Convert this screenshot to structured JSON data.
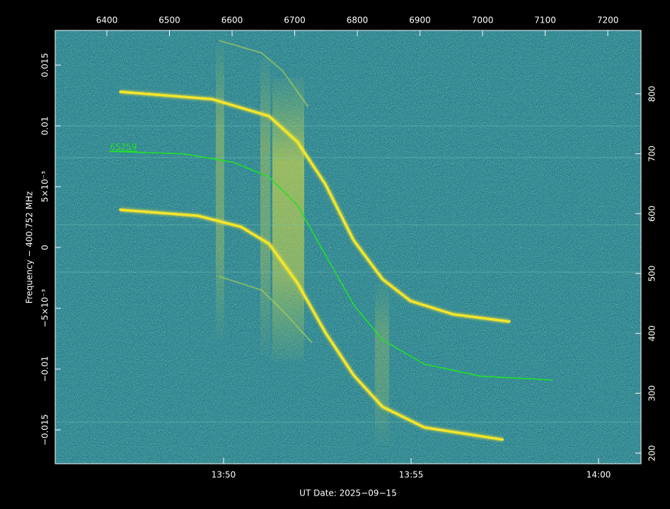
{
  "chart_data": {
    "type": "line",
    "xlabel": "UT Date: 2025−09−15",
    "ylabel": "Frequency − 400.752 MHz",
    "xlim": [
      6317.5,
      7253
    ],
    "xticks": [
      6400,
      6500,
      6600,
      6700,
      6800,
      6900,
      7000,
      7100,
      7200
    ],
    "x2lim": [
      825.51,
      841.13
    ],
    "x2ticks": [
      {
        "value": 830,
        "label": "13:50"
      },
      {
        "value": 835,
        "label": "13:55"
      },
      {
        "value": 840,
        "label": "14:00"
      }
    ],
    "ylim": [
      -0.01779,
      0.01785
    ],
    "yticks": [
      {
        "value": -0.015,
        "label": "−0.015"
      },
      {
        "value": -0.01,
        "label": "−0.01"
      },
      {
        "value": -0.005,
        "label": "−5×10⁻³"
      },
      0,
      {
        "value": 0.005,
        "label": "5×10⁻³"
      },
      0.01,
      0.015
    ],
    "y2lim": [
      182.3,
      906
    ],
    "y2ticks": [
      200,
      300,
      400,
      500,
      600,
      700,
      800
    ],
    "series": [
      {
        "color": "#f4e52c",
        "x": [
          6421.5,
          6568,
          6659,
          6704,
          6749,
          6794,
          6840,
          6885,
          6953,
          7043
        ],
        "values": [
          0.0128,
          0.0122,
          0.0108,
          0.0087,
          0.0052,
          0.0006,
          -0.0026,
          -0.0044,
          -0.0055,
          -0.0061
        ]
      },
      {
        "color": "#f4e52c",
        "x": [
          6421.5,
          6546,
          6614,
          6659,
          6704,
          6749,
          6794,
          6840,
          6907,
          7032
        ],
        "values": [
          0.0031,
          0.0026,
          0.0017,
          0.0003,
          -0.0029,
          -0.007,
          -0.0105,
          -0.0131,
          -0.0148,
          -0.0158
        ]
      },
      {
        "color": "#b9d94a",
        "x": [
          6580,
          6647,
          6681,
          6721
        ],
        "values": [
          0.017,
          0.016,
          0.0145,
          0.0116
        ]
      },
      {
        "color": "#b9d94a",
        "x": [
          6580,
          6647,
          6681,
          6727
        ],
        "values": [
          -0.0024,
          -0.0035,
          -0.0052,
          -0.0078
        ]
      },
      {
        "color": "#22e02a",
        "x": [
          6404.5,
          6523,
          6602,
          6659,
          6704,
          6749,
          6794,
          6840,
          6907,
          6998,
          7111
        ],
        "values": [
          0.0079,
          0.0077,
          0.007,
          0.0058,
          0.0035,
          -0.0006,
          -0.0047,
          -0.0076,
          -0.0096,
          -0.0106,
          -0.0109
        ]
      }
    ],
    "annotation": {
      "text": "65259",
      "x": 6405,
      "y": 0.0081,
      "color": "#22e02a"
    }
  }
}
